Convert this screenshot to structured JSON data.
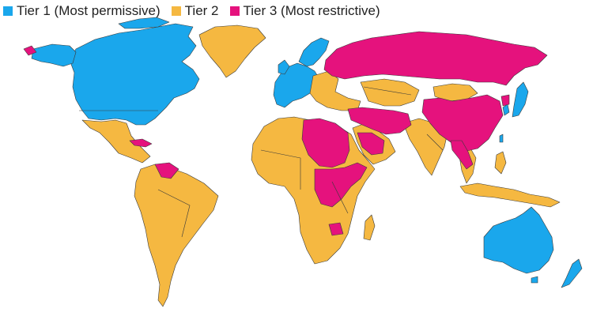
{
  "legend": {
    "tier1": {
      "label": "Tier 1 (Most permissive)",
      "color": "#1aa7ec"
    },
    "tier2": {
      "label": "Tier 2",
      "color": "#f5b841"
    },
    "tier3": {
      "label": "Tier 3 (Most restrictive)",
      "color": "#e5127d"
    }
  },
  "regions": {
    "tier1": [
      "Canada",
      "United States",
      "Greenland",
      "Western Europe",
      "Scandinavia",
      "Japan",
      "South Korea",
      "Australia",
      "New Zealand",
      "Taiwan",
      "Israel"
    ],
    "tier2": [
      "Mexico",
      "Central America",
      "South America",
      "Africa",
      "Middle East",
      "South Asia",
      "Southeast Asia",
      "Eastern Europe",
      "Mongolia",
      "Central Asia"
    ],
    "tier3": [
      "Russia",
      "China",
      "Iran",
      "Afghanistan",
      "Cuba",
      "Venezuela",
      "Sudan",
      "Libya",
      "Egypt",
      "Ethiopia",
      "Somalia",
      "DR Congo",
      "Zimbabwe",
      "Vietnam",
      "Saudi Arabia",
      "Iraq",
      "Syria"
    ]
  }
}
